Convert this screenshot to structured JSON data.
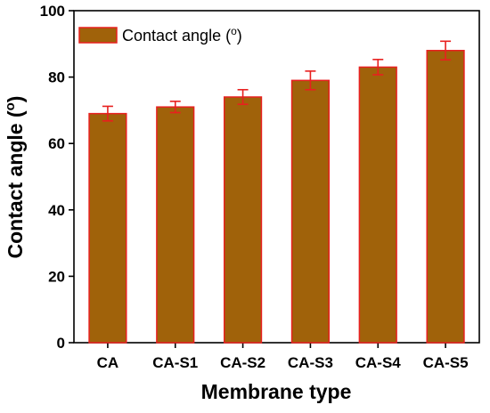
{
  "chart_data": {
    "type": "bar",
    "categories": [
      "CA",
      "CA-S1",
      "CA-S2",
      "CA-S3",
      "CA-S4",
      "CA-S5"
    ],
    "series": [
      {
        "name": "Contact angle (",
        "values": [
          69,
          71,
          74,
          79,
          83,
          88
        ],
        "errors": [
          2.2,
          1.7,
          2.2,
          2.8,
          2.3,
          2.8
        ]
      }
    ],
    "xlabel": "Membrane type",
    "ylabel": "Contact angle (",
    "ylim": [
      0,
      100
    ],
    "yticks": [
      0,
      20,
      40,
      60,
      80,
      100
    ],
    "legend_placement": "top-left",
    "grid": false,
    "colors": {
      "bar_fill": "#A0620A",
      "bar_edge": "#E8201F",
      "error_bar": "#E8201F",
      "axis": "#000000"
    }
  }
}
